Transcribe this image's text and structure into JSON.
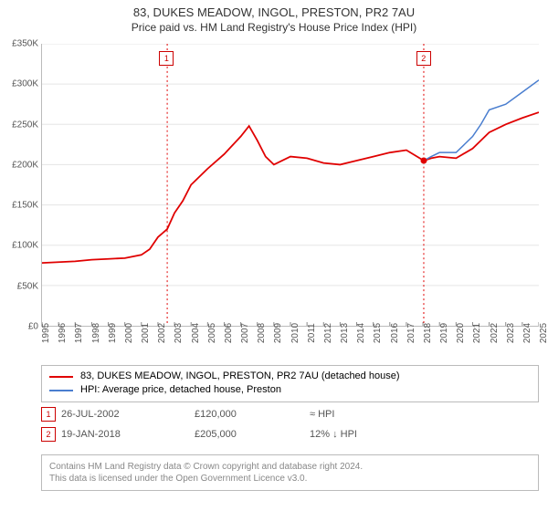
{
  "title": {
    "main": "83, DUKES MEADOW, INGOL, PRESTON, PR2 7AU",
    "sub": "Price paid vs. HM Land Registry's House Price Index (HPI)"
  },
  "chart": {
    "type": "line",
    "background_color": "#ffffff",
    "border_color": "#bbbbbb",
    "grid_color": "#e5e5e5",
    "xlim_year": [
      1995,
      2025
    ],
    "ylim": [
      0,
      350000
    ],
    "ytick_step": 50000,
    "ytick_labels": [
      "£0",
      "£50K",
      "£100K",
      "£150K",
      "£200K",
      "£250K",
      "£300K",
      "£350K"
    ],
    "xtick_years": [
      1995,
      1996,
      1997,
      1998,
      1999,
      2000,
      2001,
      2002,
      2003,
      2004,
      2005,
      2006,
      2007,
      2008,
      2009,
      2010,
      2011,
      2012,
      2013,
      2014,
      2015,
      2016,
      2017,
      2018,
      2019,
      2020,
      2021,
      2022,
      2023,
      2024,
      2025
    ],
    "series": [
      {
        "id": "property_price",
        "color": "#e00000",
        "width": 1.8,
        "points_year": [
          1995,
          1996,
          1997,
          1998,
          1999,
          2000,
          2001,
          2001.5,
          2002,
          2002.56,
          2003,
          2003.5,
          2004,
          2005,
          2006,
          2007,
          2007.5,
          2008,
          2008.5,
          2009,
          2010,
          2011,
          2012,
          2013,
          2014,
          2015,
          2016,
          2017,
          2018.05,
          2018.5,
          2019,
          2020,
          2021,
          2022,
          2023,
          2024,
          2025
        ],
        "points_value": [
          78000,
          79000,
          80000,
          82000,
          83000,
          84000,
          88000,
          95000,
          110000,
          120000,
          140000,
          155000,
          175000,
          195000,
          213000,
          235000,
          248000,
          230000,
          210000,
          200000,
          210000,
          208000,
          202000,
          200000,
          205000,
          210000,
          215000,
          218000,
          205000,
          208000,
          210000,
          208000,
          220000,
          240000,
          250000,
          258000,
          265000
        ]
      },
      {
        "id": "hpi",
        "color": "#4a7ecf",
        "width": 1.5,
        "points_year": [
          2018.05,
          2018.5,
          2019,
          2020,
          2021,
          2021.5,
          2022,
          2023,
          2024,
          2025
        ],
        "points_value": [
          205000,
          210000,
          215000,
          215000,
          235000,
          250000,
          268000,
          275000,
          290000,
          305000
        ]
      }
    ],
    "start_marker": {
      "year": 2018.05,
      "value": 205000,
      "radius": 3.5,
      "color": "#e00000"
    },
    "vlines_year": [
      2002.56,
      2018.05
    ],
    "vline_color": "#e00000",
    "vline_dash": "2,3",
    "ref_labels": [
      {
        "num": "1",
        "year": 2002.56
      },
      {
        "num": "2",
        "year": 2018.05
      }
    ]
  },
  "legend": {
    "items": [
      {
        "color": "#e00000",
        "label": "83, DUKES MEADOW, INGOL, PRESTON, PR2 7AU (detached house)"
      },
      {
        "color": "#4a7ecf",
        "label": "HPI: Average price, detached house, Preston"
      }
    ]
  },
  "transactions": [
    {
      "num": "1",
      "date": "26-JUL-2002",
      "price": "£120,000",
      "pct": "≈ HPI"
    },
    {
      "num": "2",
      "date": "19-JAN-2018",
      "price": "£205,000",
      "pct": "12% ↓ HPI"
    }
  ],
  "attribution": {
    "line1": "Contains HM Land Registry data © Crown copyright and database right 2024.",
    "line2": "This data is licensed under the Open Government Licence v3.0."
  }
}
